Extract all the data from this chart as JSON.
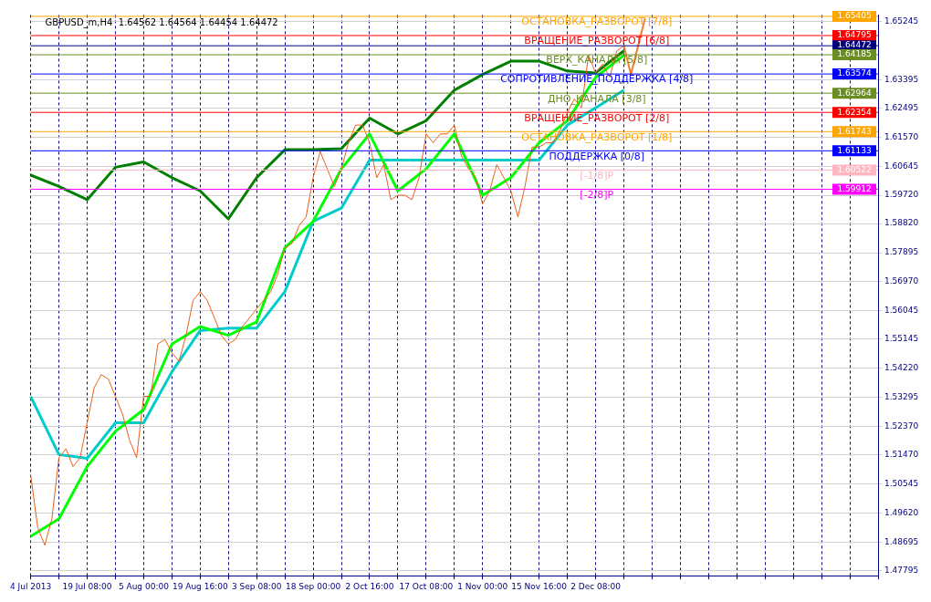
{
  "chart_data": {
    "type": "line",
    "title": "GBPUSD_m,H4  1.64562 1.64564 1.64454 1.64472",
    "categories": [
      "4 Jul 2013",
      null,
      null,
      null,
      null,
      null,
      null,
      null,
      "19 Jul 08:00",
      null,
      null,
      null,
      null,
      null,
      null,
      null,
      "5 Aug 00:00",
      null,
      null,
      null,
      null,
      null,
      null,
      null,
      "19 Aug 16:00",
      null,
      null,
      null,
      null,
      null,
      null,
      null,
      "3 Sep 08:00",
      null,
      null,
      null,
      null,
      null,
      null,
      null,
      "18 Sep 00:00",
      null,
      null,
      null,
      null,
      null,
      null,
      null,
      "2 Oct 16:00",
      null,
      null,
      null,
      null,
      null,
      null,
      null,
      "17 Oct 08:00",
      null,
      null,
      null,
      null,
      null,
      null,
      null,
      "1 Nov 00:00",
      null,
      null,
      null,
      null,
      null,
      null,
      null,
      "15 Nov 16:00",
      null,
      null,
      null,
      null,
      null,
      null,
      null,
      "2 Dec 08:00",
      null,
      null,
      null,
      null,
      null,
      null,
      null,
      null,
      null,
      null,
      null,
      null,
      null,
      null,
      null,
      null,
      null,
      null,
      null,
      null,
      null,
      null,
      null,
      null,
      null,
      null,
      null,
      null,
      null,
      null,
      null,
      null,
      null,
      null,
      null,
      null,
      null,
      null,
      null,
      null
    ],
    "series": [
      {
        "color": "#e8601c",
        "values": [
          1.5083,
          1.4916,
          1.486,
          1.4944,
          1.5138,
          1.5166,
          1.511,
          1.5138,
          1.5249,
          1.5361,
          1.5402,
          1.5388,
          1.5333,
          1.5277,
          1.5194,
          1.5138,
          1.5333,
          1.5333,
          1.5499,
          1.5514,
          1.5472,
          1.5444,
          1.5527,
          1.5638,
          1.5666,
          1.5638,
          1.5583,
          1.5527,
          1.5499,
          1.5514,
          1.5555,
          1.5583,
          1.5611,
          1.5638,
          1.5666,
          1.5722,
          1.5805,
          1.5819,
          1.5875,
          1.5903,
          1.6028,
          1.6111,
          1.6056,
          1.6,
          1.6056,
          1.6139,
          1.6195,
          1.6195,
          1.6139,
          1.6028,
          1.6069,
          1.5958,
          1.5972,
          1.5972,
          1.5958,
          1.6028,
          1.6167,
          1.6139,
          1.6167,
          1.6167,
          1.6195,
          1.6097,
          1.6056,
          1.6028,
          1.5944,
          1.5986,
          1.6069,
          1.6028,
          1.5986,
          1.5903,
          1.6,
          1.6125,
          1.6125,
          1.6139,
          1.6139,
          1.618,
          1.6236,
          1.6278,
          1.625,
          1.6417,
          1.6361,
          1.6389,
          1.6347,
          1.6431,
          1.6447,
          null,
          null,
          null,
          null,
          null,
          null,
          null,
          null,
          null,
          null,
          null,
          null,
          null,
          null,
          null,
          null,
          null,
          null,
          null,
          null,
          null,
          null,
          null,
          null,
          null,
          null,
          null,
          null,
          null,
          null,
          null,
          null,
          null,
          null,
          null,
          null
        ]
      },
      {
        "color": "#008000",
        "values": [
          1.6036,
          null,
          null,
          null,
          1.6,
          null,
          null,
          null,
          1.5958,
          null,
          null,
          null,
          1.6061,
          null,
          null,
          null,
          1.6078,
          null,
          null,
          null,
          1.6028,
          null,
          null,
          null,
          1.5986,
          null,
          null,
          null,
          1.5897,
          null,
          null,
          null,
          1.6028,
          null,
          null,
          null,
          1.6117,
          null,
          null,
          null,
          1.6117,
          null,
          null,
          null,
          1.612,
          null,
          null,
          null,
          1.6217,
          null,
          null,
          null,
          1.6167,
          null,
          null,
          null,
          1.6209,
          null,
          null,
          null,
          1.6306,
          null,
          null,
          null,
          1.6356,
          null,
          null,
          null,
          1.6398,
          null,
          null,
          null,
          1.6398,
          null,
          null,
          null,
          1.6367,
          null,
          null,
          null,
          1.6361,
          null,
          null,
          null,
          1.6431,
          null,
          null,
          null,
          null,
          null,
          null,
          null,
          null,
          null,
          null,
          null,
          null,
          null,
          null,
          null,
          null,
          null,
          null,
          null,
          null,
          null,
          null,
          null,
          null,
          null,
          null,
          null,
          null,
          null,
          null,
          null,
          null,
          null,
          null,
          null,
          null
        ]
      },
      {
        "color": "#00ff00",
        "values": [
          1.4888,
          null,
          null,
          null,
          1.4944,
          null,
          null,
          null,
          1.511,
          null,
          null,
          null,
          1.5222,
          null,
          null,
          null,
          1.5291,
          null,
          null,
          null,
          1.5499,
          null,
          null,
          null,
          1.5555,
          null,
          null,
          null,
          1.5527,
          null,
          null,
          null,
          1.557,
          null,
          null,
          null,
          1.5805,
          null,
          null,
          null,
          1.5889,
          null,
          null,
          null,
          1.6056,
          null,
          null,
          null,
          1.6167,
          null,
          null,
          null,
          1.5986,
          null,
          null,
          null,
          1.6056,
          null,
          null,
          null,
          1.6167,
          null,
          null,
          null,
          1.5972,
          null,
          null,
          null,
          1.6028,
          null,
          null,
          null,
          1.6139,
          null,
          null,
          null,
          1.6209,
          null,
          null,
          null,
          1.6347,
          null,
          null,
          null,
          1.6417,
          null,
          null,
          null,
          null,
          null,
          null,
          null,
          null,
          null,
          null,
          null,
          null,
          null,
          null,
          null,
          null,
          null,
          null,
          null,
          null,
          null,
          null,
          null,
          null,
          null,
          null,
          null,
          null,
          null,
          null,
          null,
          null,
          null,
          null,
          null,
          null
        ]
      },
      {
        "color": "#00cccc",
        "values": [
          1.5333,
          null,
          null,
          null,
          1.5148,
          null,
          null,
          null,
          1.5136,
          null,
          null,
          null,
          1.5249,
          null,
          null,
          null,
          1.5249,
          null,
          null,
          null,
          1.5411,
          null,
          null,
          null,
          1.5542,
          null,
          null,
          null,
          1.555,
          null,
          null,
          null,
          1.555,
          null,
          null,
          null,
          1.5666,
          null,
          null,
          null,
          1.5889,
          null,
          null,
          null,
          1.5931,
          null,
          null,
          null,
          1.6084,
          null,
          null,
          null,
          1.6084,
          null,
          null,
          null,
          1.6084,
          null,
          null,
          null,
          1.6084,
          null,
          null,
          null,
          1.6084,
          null,
          null,
          null,
          1.6084,
          null,
          null,
          null,
          1.6084,
          null,
          null,
          null,
          1.6195,
          null,
          null,
          null,
          1.625,
          null,
          null,
          null,
          1.6306,
          null,
          null,
          null,
          null,
          null,
          null,
          null,
          null,
          null,
          null,
          null,
          null,
          null,
          null,
          null,
          null,
          null,
          null,
          null,
          null,
          null,
          null,
          null,
          null,
          null,
          null,
          null,
          null,
          null,
          null,
          null,
          null,
          null,
          null,
          null,
          null
        ]
      },
      {
        "color": "#f08030",
        "values": [
          null,
          null,
          null,
          null,
          null,
          null,
          null,
          null,
          null,
          null,
          null,
          null,
          null,
          null,
          null,
          null,
          null,
          null,
          null,
          null,
          null,
          null,
          null,
          null,
          null,
          null,
          null,
          null,
          null,
          null,
          null,
          null,
          null,
          null,
          null,
          null,
          null,
          null,
          null,
          null,
          null,
          null,
          null,
          null,
          null,
          null,
          null,
          null,
          null,
          null,
          null,
          null,
          null,
          null,
          null,
          null,
          null,
          null,
          null,
          null,
          null,
          null,
          null,
          null,
          null,
          null,
          null,
          null,
          null,
          null,
          null,
          null,
          null,
          null,
          null,
          null,
          null,
          null,
          null,
          null,
          null,
          null,
          null,
          null,
          1.6447,
          1.6356,
          null,
          1.6534,
          null,
          null,
          null,
          null,
          null,
          null,
          null,
          null,
          null,
          null,
          null,
          null,
          null,
          null,
          null,
          null,
          null,
          null,
          null,
          null,
          null,
          null,
          null,
          null,
          null,
          null,
          null,
          null,
          null,
          null,
          null,
          null,
          null
        ]
      }
    ],
    "ylim": [
      1.4763,
      1.6545
    ],
    "yticks": [
      1.47795,
      1.48695,
      {
        "value": 1.4962,
        "label": "1.49620"
      },
      1.50545,
      {
        "value": 1.5147,
        "label": "1.51470"
      },
      {
        "value": 1.5237,
        "label": "1.52370"
      },
      1.53295,
      {
        "value": 1.5422,
        "label": "1.54220"
      },
      1.55145,
      1.56045,
      {
        "value": 1.5697,
        "label": "1.56970"
      },
      1.57895,
      {
        "value": 1.5882,
        "label": "1.58820"
      },
      {
        "value": 1.5972,
        "label": "1.59720"
      },
      1.60645,
      {
        "value": 1.6157,
        "label": "1.61570"
      },
      1.62495,
      1.63395,
      1.65245
    ],
    "ref_lines": [
      {
        "axis": "y",
        "value": 1.65405,
        "label": "ОСТАНОВКА_РАЗВОРОТ [7/8]",
        "color": "#ffa500"
      },
      {
        "axis": "y",
        "value": 1.64795,
        "label": "ВРАЩЕНИЕ_РАЗВОРОТ [6/8]",
        "color": "#ff0000"
      },
      {
        "axis": "y",
        "value": 1.64472,
        "label": null,
        "color": "#000080"
      },
      {
        "axis": "y",
        "value": 1.64185,
        "label": "ВЕРХ_КАНАЛА [5/8]",
        "color": "#6b8e23"
      },
      {
        "axis": "y",
        "value": 1.63574,
        "label": "СОПРОТИВЛЕНИЕ_ПОДДЕРЖКА [4/8]",
        "color": "#0000ff"
      },
      {
        "axis": "y",
        "value": 1.62964,
        "label": "ДНО_КАНАЛА [3/8]",
        "color": "#6b8e23"
      },
      {
        "axis": "y",
        "value": 1.62354,
        "label": "ВРАЩЕНИЕ_РАЗВОРОТ [2/8]",
        "color": "#ff0000"
      },
      {
        "axis": "y",
        "value": 1.61743,
        "label": "ОСТАНОВКА_РАЗВОРОТ [1/8]",
        "color": "#ffa500"
      },
      {
        "axis": "y",
        "value": 1.61133,
        "label": "ПОДДЕРЖКА [0/8]",
        "color": "#0000ff"
      },
      {
        "axis": "y",
        "value": 1.60522,
        "label": "[-1/8]P",
        "color": "#ffb6c1"
      },
      {
        "axis": "y",
        "value": 1.59912,
        "label": "[-2/8]P",
        "color": "#ff00ff"
      }
    ],
    "annotations": [
      {
        "text": "1.65405",
        "y": 1.65405
      },
      {
        "text": "1.64795",
        "y": 1.64795
      },
      {
        "text": "1.64472",
        "y": 1.64472
      },
      {
        "text": "1.64185",
        "y": 1.64185
      },
      {
        "text": "1.63574",
        "y": 1.63574
      },
      {
        "text": "1.62964",
        "y": 1.62964
      },
      {
        "text": "1.62354",
        "y": 1.62354
      },
      {
        "text": "1.61743",
        "y": 1.61743
      },
      {
        "text": "1.61133",
        "y": 1.61133
      },
      {
        "text": "1.60522",
        "y": 1.60522
      },
      {
        "text": "1.59912",
        "y": 1.59912
      }
    ],
    "grid": true,
    "legend": false,
    "marker": "none",
    "line_style": "solid"
  }
}
